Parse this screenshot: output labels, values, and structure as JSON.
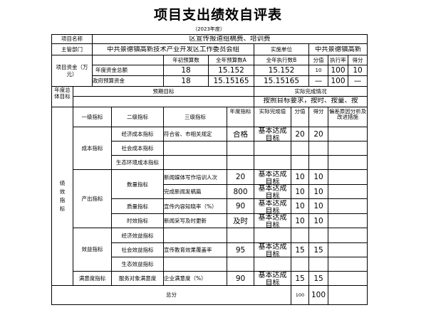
{
  "header": {
    "title": "项目支出绩效自评表",
    "year": "（2023年度）"
  },
  "project": {
    "name_label": "项目名称",
    "name": "区宣传报道组稿费、培训费",
    "dept_label": "主管部门",
    "dept": "中共景德镇高新技术产业开发区工作委员会组",
    "unit_label": "实施单位",
    "unit": "中共景德镇高新"
  },
  "funds": {
    "label": "项目资金（万元）",
    "headers": [
      "年初预算数",
      "全年预算数A",
      "全年执行数B",
      "分值",
      "执行率",
      "得分"
    ],
    "rows": [
      {
        "label": "年度资金总额",
        "values": [
          "18",
          "15.152",
          "15.152",
          "10",
          "100",
          "10"
        ]
      },
      {
        "label": "政府预算资金",
        "values": [
          "18",
          "15.15165",
          "15.15165",
          "—",
          "100",
          "—"
        ]
      }
    ]
  },
  "goal": {
    "label": "年度总体目标",
    "expected_label": "预期目标",
    "actual_label": "实际完成情况",
    "expected": "",
    "actual": "按照目标要求，按时、按量、按"
  },
  "indicators": {
    "section_label": "绩效指标",
    "headers": [
      "一级指标",
      "二级指标",
      "三级指标",
      "年度指标",
      "实际完成值",
      "分值",
      "得分",
      "偏差原因分析及改进措施"
    ],
    "rows": [
      {
        "l1": "成本指标",
        "l2": "经济成本指标",
        "l3": "符合省、市相关规定",
        "target": "合格",
        "actual": "基本达成目标",
        "weight": "20",
        "score": "20",
        "note": ""
      },
      {
        "l2": "社会成本指标",
        "l3": "",
        "target": "",
        "actual": "",
        "weight": "",
        "score": "",
        "note": ""
      },
      {
        "l2": "生态环境成本指标",
        "l3": "",
        "target": "",
        "actual": "",
        "weight": "",
        "score": "",
        "note": ""
      },
      {
        "l1": "产出指标",
        "l2": "数量指标",
        "l3": "新闻媒体写作培训人次",
        "target": "20",
        "actual": "基本达成目标",
        "weight": "10",
        "score": "10",
        "note": ""
      },
      {
        "l3": "完成新闻发稿篇",
        "target": "800",
        "actual": "基本达成目标",
        "weight": "10",
        "score": "10",
        "note": ""
      },
      {
        "l2": "质量指标",
        "l3": "宣传内容知晓率（%）",
        "target": "90",
        "actual": "基本达成目标",
        "weight": "10",
        "score": "10",
        "note": ""
      },
      {
        "l2": "时效指标",
        "l3": "新闻采写及时更新",
        "target": "及时",
        "actual": "基本达成目标",
        "weight": "10",
        "score": "10",
        "note": ""
      },
      {
        "l1": "效益指标",
        "l2": "经济效益指标",
        "l3": "",
        "target": "",
        "actual": "",
        "weight": "",
        "score": "",
        "note": ""
      },
      {
        "l2": "社会效益指标",
        "l3": "宣传教育效果覆盖率",
        "target": "95",
        "actual": "基本达成目标",
        "weight": "15",
        "score": "15",
        "note": ""
      },
      {
        "l2": "生态效益指标",
        "l3": "",
        "target": "",
        "actual": "",
        "weight": "",
        "score": "",
        "note": ""
      },
      {
        "l1": "满意度指标",
        "l2": "服务对象满意度",
        "l3": "企业满意度（%）",
        "target": "90",
        "actual": "基本达成目标",
        "weight": "15",
        "score": "15",
        "note": ""
      }
    ],
    "total": {
      "label": "总分",
      "weight": "100",
      "score": "100",
      "note": ""
    }
  }
}
